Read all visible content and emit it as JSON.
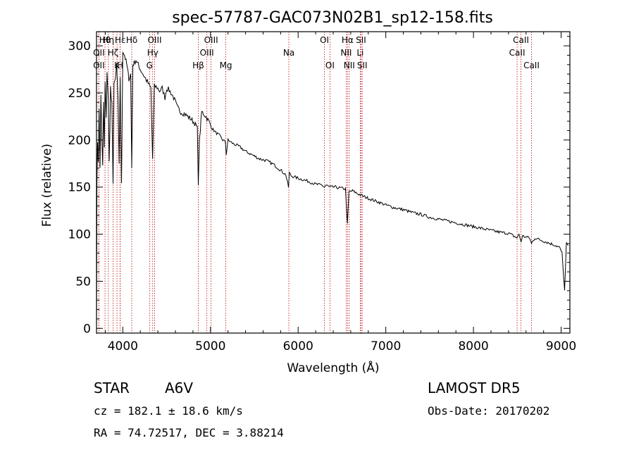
{
  "chart_data": {
    "type": "line",
    "title": "spec-57787-GAC073N02B1_sp12-158.fits",
    "xlabel": "Wavelength (Å)",
    "ylabel": "Flux (relative)",
    "xlim": [
      3700,
      9100
    ],
    "ylim": [
      -5,
      315
    ],
    "x_ticks": [
      4000,
      5000,
      6000,
      7000,
      8000,
      9000
    ],
    "y_ticks": [
      0,
      50,
      100,
      150,
      200,
      250,
      300
    ],
    "series": [
      {
        "x": [
          3700,
          3705,
          3712,
          3720,
          3730,
          3740,
          3750,
          3760,
          3771,
          3780,
          3790,
          3798,
          3810,
          3820,
          3835,
          3845,
          3860,
          3875,
          3889,
          3900,
          3915,
          3930,
          3945,
          3958,
          3970,
          3985,
          4000,
          4020,
          4045,
          4070,
          4090,
          4102,
          4115,
          4130,
          4150,
          4175,
          4200,
          4230,
          4260,
          4290,
          4320,
          4340,
          4360,
          4390,
          4420,
          4450,
          4481,
          4500,
          4530,
          4550,
          4580,
          4620,
          4660,
          4700,
          4740,
          4780,
          4820,
          4850,
          4861,
          4875,
          4900,
          4940,
          4980,
          5020,
          5060,
          5100,
          5140,
          5170,
          5180,
          5200,
          5260,
          5330,
          5400,
          5480,
          5560,
          5640,
          5720,
          5800,
          5860,
          5890,
          5900,
          5920,
          5980,
          6050,
          6120,
          6200,
          6270,
          6300,
          6320,
          6360,
          6420,
          6480,
          6540,
          6562,
          6580,
          6620,
          6680,
          6750,
          6830,
          6920,
          7000,
          7100,
          7200,
          7300,
          7400,
          7500,
          7600,
          7700,
          7800,
          7900,
          8000,
          8100,
          8200,
          8300,
          8400,
          8498,
          8520,
          8542,
          8560,
          8600,
          8640,
          8662,
          8700,
          8760,
          8820,
          8880,
          8940,
          8980,
          9010,
          9040,
          9060,
          9080
        ],
        "values": [
          0,
          150,
          200,
          180,
          230,
          170,
          250,
          200,
          170,
          240,
          190,
          260,
          220,
          275,
          240,
          175,
          255,
          235,
          150,
          265,
          260,
          280,
          240,
          170,
          268,
          150,
          295,
          290,
          280,
          265,
          270,
          170,
          280,
          282,
          285,
          280,
          275,
          270,
          265,
          260,
          255,
          180,
          257,
          256,
          252,
          255,
          245,
          255,
          253,
          250,
          245,
          235,
          230,
          228,
          225,
          222,
          218,
          212,
          155,
          200,
          230,
          226,
          220,
          212,
          208,
          205,
          200,
          198,
          185,
          200,
          196,
          193,
          188,
          184,
          180,
          178,
          174,
          168,
          163,
          150,
          165,
          162,
          160,
          158,
          156,
          153,
          152,
          150,
          152,
          150,
          150,
          149,
          148,
          110,
          145,
          146,
          143,
          140,
          137,
          134,
          131,
          128,
          126,
          123,
          121,
          118,
          116,
          114,
          112,
          110,
          108,
          106,
          104,
          102,
          101,
          96,
          100,
          92,
          98,
          97,
          96,
          90,
          96,
          94,
          92,
          90,
          88,
          86,
          80,
          40,
          90,
          88
        ]
      }
    ],
    "lines": [
      {
        "label": "Hθ",
        "wl": 3797,
        "row": 0
      },
      {
        "label": "OII",
        "wl": 3727,
        "row": 1
      },
      {
        "label": "OII",
        "wl": 3727,
        "row": 2
      },
      {
        "label": "Hη",
        "wl": 3835,
        "row": 0
      },
      {
        "label": "Hζ",
        "wl": 3889,
        "row": 1
      },
      {
        "label": "Hε",
        "wl": 3970,
        "row": 0
      },
      {
        "label": "K",
        "wl": 3934,
        "row": 2
      },
      {
        "label": "H",
        "wl": 3969,
        "row": 2
      },
      {
        "label": "Hδ",
        "wl": 4102,
        "row": 0
      },
      {
        "label": "OIII",
        "wl": 4363,
        "row": 0
      },
      {
        "label": "Hγ",
        "wl": 4341,
        "row": 1
      },
      {
        "label": "G",
        "wl": 4305,
        "row": 2
      },
      {
        "label": "Hβ",
        "wl": 4861,
        "row": 2
      },
      {
        "label": "OIII",
        "wl": 4959,
        "row": 1
      },
      {
        "label": "OIII",
        "wl": 5007,
        "row": 0
      },
      {
        "label": "Mg",
        "wl": 5175,
        "row": 2
      },
      {
        "label": "Na",
        "wl": 5894,
        "row": 1
      },
      {
        "label": "OI",
        "wl": 6300,
        "row": 0
      },
      {
        "label": "OI",
        "wl": 6363,
        "row": 2
      },
      {
        "label": "Hα",
        "wl": 6563,
        "row": 0
      },
      {
        "label": "NII",
        "wl": 6548,
        "row": 1
      },
      {
        "label": "NII",
        "wl": 6583,
        "row": 2
      },
      {
        "label": "SII",
        "wl": 6717,
        "row": 0
      },
      {
        "label": "SII",
        "wl": 6731,
        "row": 2
      },
      {
        "label": "Li",
        "wl": 6708,
        "row": 1
      },
      {
        "label": "CaII",
        "wl": 8542,
        "row": 0
      },
      {
        "label": "CaII",
        "wl": 8498,
        "row": 1
      },
      {
        "label": "CaII",
        "wl": 8662,
        "row": 2
      }
    ],
    "line_color": "#c00000"
  },
  "info": {
    "object_class": "STAR",
    "subclass": "A6V",
    "survey": "LAMOST DR5",
    "cz": "cz = 182.1 ± 18.6 km/s",
    "obs_date": "Obs-Date: 20170202",
    "radec": "RA =  74.72517, DEC =   3.88214"
  }
}
